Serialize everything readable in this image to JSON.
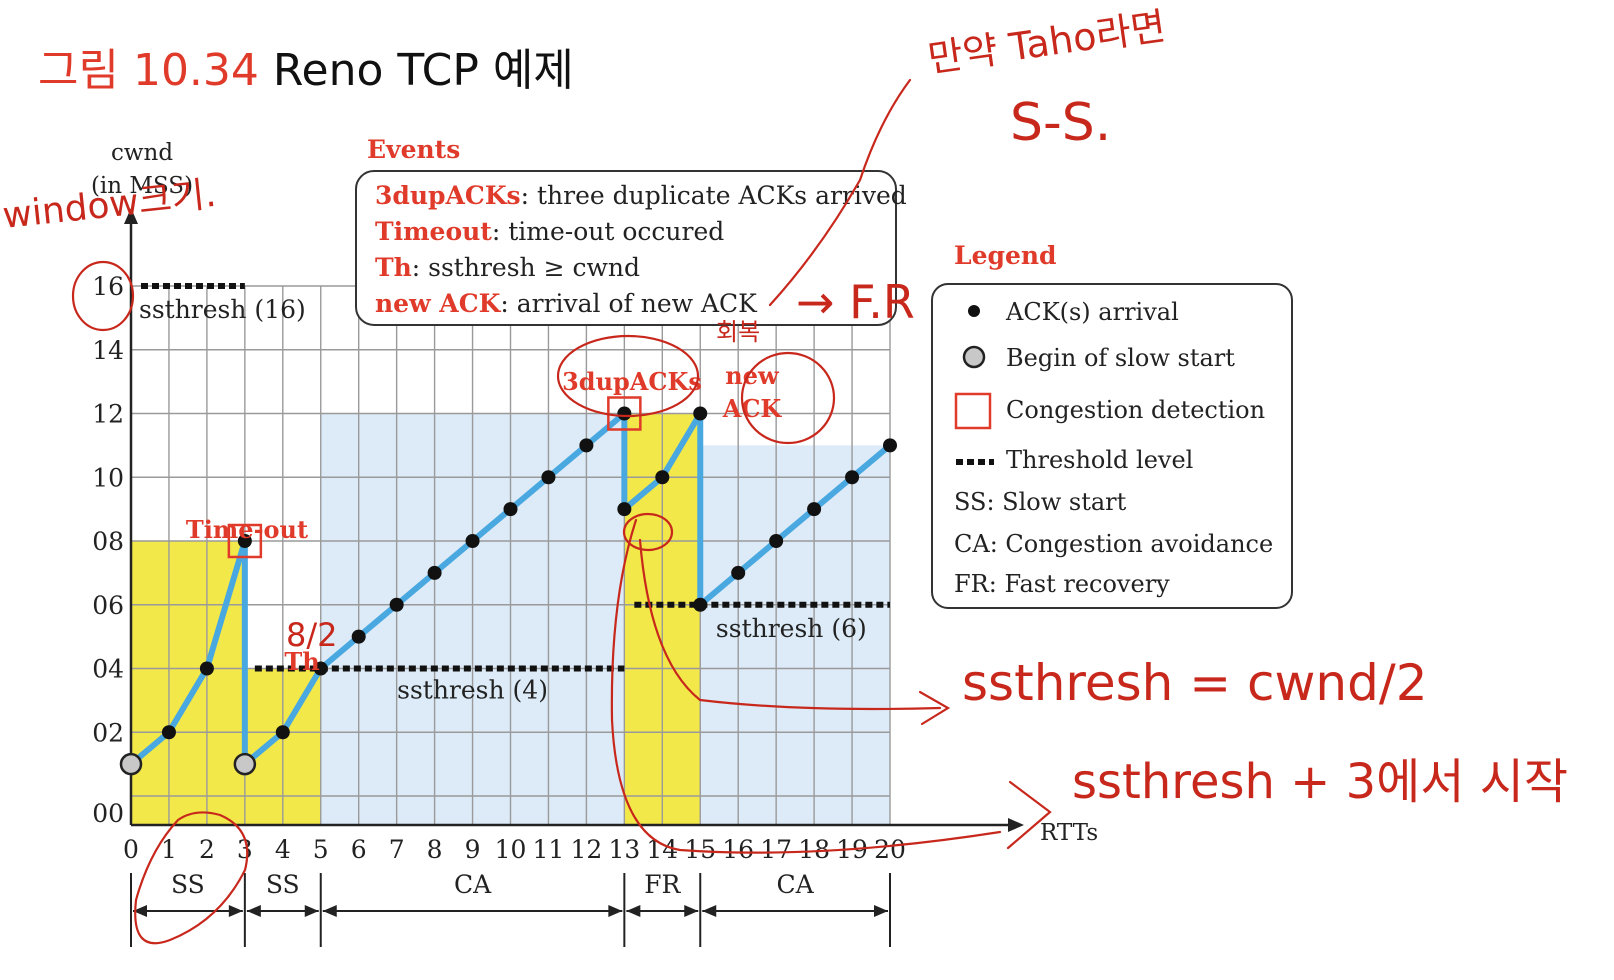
{
  "title": {
    "prefix": "그림 10.34",
    "main": "Reno TCP 예제"
  },
  "chart_data": {
    "type": "line",
    "xlabel": "RTTs",
    "ylabel_line1": "cwnd",
    "ylabel_line2": "(in MSS)",
    "x_ticks": [
      "0",
      "1",
      "2",
      "3",
      "4",
      "5",
      "6",
      "7",
      "8",
      "9",
      "10",
      "11",
      "12",
      "13",
      "14",
      "15",
      "16",
      "17",
      "18",
      "19",
      "20"
    ],
    "y_ticks": [
      "00",
      "02",
      "04",
      "06",
      "08",
      "10",
      "12",
      "14",
      "16"
    ],
    "xlim": [
      0,
      20
    ],
    "ylim": [
      0,
      16
    ],
    "grid": true,
    "segments": [
      {
        "x": [
          0,
          1,
          2,
          3
        ],
        "y": [
          1,
          2,
          4,
          8
        ]
      },
      {
        "x": [
          3,
          3
        ],
        "y": [
          8,
          1
        ]
      },
      {
        "x": [
          3,
          4,
          5
        ],
        "y": [
          1,
          2,
          4
        ]
      },
      {
        "x": [
          5,
          6,
          7,
          8,
          9,
          10,
          11,
          12,
          13
        ],
        "y": [
          4,
          5,
          6,
          7,
          8,
          9,
          10,
          11,
          12
        ]
      },
      {
        "x": [
          13,
          13
        ],
        "y": [
          12,
          9
        ]
      },
      {
        "x": [
          13,
          14,
          15
        ],
        "y": [
          9,
          10,
          12
        ]
      },
      {
        "x": [
          15,
          15
        ],
        "y": [
          12,
          6
        ]
      },
      {
        "x": [
          15,
          16,
          17,
          18,
          19,
          20
        ],
        "y": [
          6,
          7,
          8,
          9,
          10,
          11
        ]
      }
    ],
    "ack_points": [
      {
        "x": 1,
        "y": 2
      },
      {
        "x": 2,
        "y": 4
      },
      {
        "x": 3,
        "y": 8
      },
      {
        "x": 4,
        "y": 2
      },
      {
        "x": 5,
        "y": 4
      },
      {
        "x": 6,
        "y": 5
      },
      {
        "x": 7,
        "y": 6
      },
      {
        "x": 8,
        "y": 7
      },
      {
        "x": 9,
        "y": 8
      },
      {
        "x": 10,
        "y": 9
      },
      {
        "x": 11,
        "y": 10
      },
      {
        "x": 12,
        "y": 11
      },
      {
        "x": 13,
        "y": 12
      },
      {
        "x": 13,
        "y": 9
      },
      {
        "x": 14,
        "y": 10
      },
      {
        "x": 15,
        "y": 12
      },
      {
        "x": 15,
        "y": 6
      },
      {
        "x": 16,
        "y": 7
      },
      {
        "x": 17,
        "y": 8
      },
      {
        "x": 18,
        "y": 9
      },
      {
        "x": 19,
        "y": 10
      },
      {
        "x": 20,
        "y": 11
      }
    ],
    "slow_start_points": [
      {
        "x": 0,
        "y": 1
      },
      {
        "x": 3,
        "y": 1
      }
    ],
    "congestion_points": [
      {
        "x": 3,
        "y": 8
      },
      {
        "x": 13,
        "y": 12
      }
    ],
    "regions": [
      {
        "phase": "SS",
        "x0": 0,
        "x1": 3,
        "ytop": 8,
        "color": "#f2e84a"
      },
      {
        "phase": "SS",
        "x0": 3,
        "x1": 5,
        "ytop": 4,
        "color": "#f2e84a"
      },
      {
        "phase": "CA",
        "x0": 5,
        "x1": 13,
        "ytop": 12,
        "color": "#dcebf7"
      },
      {
        "phase": "FR",
        "x0": 13,
        "x1": 15,
        "ytop": 12,
        "color": "#f2e84a"
      },
      {
        "phase": "CA",
        "x0": 15,
        "x1": 20,
        "ytop": 11,
        "color": "#dcebf7"
      }
    ],
    "thresholds": [
      {
        "x0": 0,
        "x1": 3,
        "y": 16,
        "label": "ssthresh (16)"
      },
      {
        "x0": 3,
        "x1": 13,
        "y": 4,
        "label": "ssthresh (4)"
      },
      {
        "x0": 13,
        "x1": 20,
        "y": 6,
        "label": "ssthresh (6)"
      }
    ],
    "annotations": [
      "Time-out",
      "Th",
      "3dupACKs",
      "new",
      "ACK"
    ],
    "phase_spans": [
      {
        "label": "SS",
        "x0": 0,
        "x1": 3
      },
      {
        "label": "SS",
        "x0": 3,
        "x1": 5
      },
      {
        "label": "CA",
        "x0": 5,
        "x1": 13
      },
      {
        "label": "FR",
        "x0": 13,
        "x1": 15
      },
      {
        "label": "CA",
        "x0": 15,
        "x1": 20
      }
    ],
    "line_color": "#4aa8e0",
    "accent_color": "#e03a2a"
  },
  "events": {
    "heading": "Events",
    "items": [
      {
        "term": "3dupACKs",
        "desc": ": three duplicate ACKs arrived"
      },
      {
        "term": "Timeout",
        "desc": ": time-out occured"
      },
      {
        "term": "Th",
        "desc": ": ssthresh ≥  cwnd"
      },
      {
        "term": "new ACK",
        "desc": ": arrival of new ACK"
      }
    ]
  },
  "legend": {
    "heading": "Legend",
    "items": [
      "ACK(s) arrival",
      "Begin of slow start",
      "Congestion detection",
      "Threshold level",
      "SS:  Slow start",
      "CA: Congestion avoidance",
      "FR:  Fast recovery"
    ]
  },
  "handwriting": {
    "top_note_1": "만약 Taho라면",
    "top_note_2": "S-S.",
    "left_note": "window크기.",
    "fr_note": "→ F.R",
    "korean_small": "회복",
    "th_note": "8/2",
    "formula_1": "ssthresh = cwnd/2",
    "formula_2": "ssthresh + 3에서 시작"
  }
}
